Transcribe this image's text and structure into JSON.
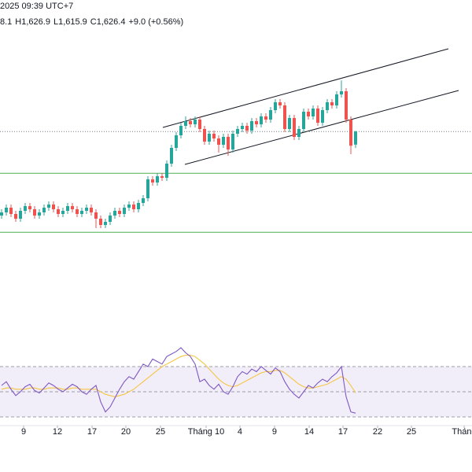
{
  "chart_data": {
    "type": "candlestick",
    "header": "2025 09:39 UTC+7",
    "ohlc_text": [
      "8.1",
      "H",
      "1,626.9",
      "L",
      "1,615.9",
      "C",
      "1,626.4",
      "+9.0 (+0.56%)"
    ],
    "open": [
      1573,
      1575,
      1578,
      1574,
      1571,
      1576,
      1579,
      1577,
      1573,
      1575,
      1578,
      1580,
      1577,
      1574,
      1576,
      1579,
      1577,
      1574,
      1576,
      1578,
      1575,
      1571,
      1567,
      1569,
      1573,
      1576,
      1574,
      1578,
      1580,
      1577,
      1581,
      1584,
      1596,
      1594,
      1598,
      1597,
      1606,
      1616,
      1624,
      1630,
      1633,
      1631,
      1634,
      1628,
      1620,
      1625,
      1622,
      1618,
      1623,
      1615,
      1625,
      1628,
      1630,
      1627,
      1633,
      1631,
      1636,
      1634,
      1640,
      1645,
      1643,
      1628,
      1635,
      1623,
      1628,
      1639,
      1636,
      1641,
      1632,
      1640,
      1645,
      1643,
      1650,
      1652,
      1634,
      1618.1
    ],
    "high": [
      1577,
      1580,
      1580,
      1576,
      1578,
      1581,
      1581,
      1579,
      1577,
      1580,
      1582,
      1582,
      1579,
      1578,
      1581,
      1581,
      1579,
      1578,
      1580,
      1580,
      1577,
      1573,
      1571,
      1575,
      1578,
      1578,
      1580,
      1582,
      1582,
      1583,
      1586,
      1598,
      1598,
      1600,
      1600,
      1608,
      1618,
      1626,
      1632,
      1636,
      1635,
      1636,
      1636,
      1630,
      1627,
      1627,
      1624,
      1625,
      1625,
      1627,
      1630,
      1632,
      1632,
      1635,
      1635,
      1638,
      1638,
      1642,
      1647,
      1647,
      1645,
      1637,
      1637,
      1630,
      1641,
      1641,
      1643,
      1643,
      1642,
      1647,
      1647,
      1652,
      1658.9,
      1654,
      1636,
      1626.9
    ],
    "low": [
      1571,
      1573,
      1572,
      1569,
      1569,
      1574,
      1575,
      1571,
      1571,
      1573,
      1576,
      1575,
      1572,
      1572,
      1574,
      1575,
      1572,
      1572,
      1574,
      1573,
      1565,
      1565,
      1565,
      1567,
      1571,
      1572,
      1572,
      1576,
      1575,
      1575,
      1579,
      1582,
      1592,
      1592,
      1595,
      1595,
      1604,
      1614,
      1622,
      1628,
      1629,
      1629,
      1626,
      1618,
      1618,
      1620,
      1613,
      1616,
      1611,
      1613,
      1623,
      1626,
      1625,
      1625,
      1629,
      1629,
      1632,
      1632,
      1638,
      1641,
      1626,
      1626,
      1621,
      1621,
      1626,
      1634,
      1634,
      1630,
      1630,
      1638,
      1641,
      1641,
      1648,
      1632,
      1612,
      1615.9
    ],
    "close": [
      1575,
      1578,
      1574,
      1571,
      1576,
      1579,
      1577,
      1573,
      1575,
      1578,
      1580,
      1577,
      1574,
      1576,
      1579,
      1577,
      1574,
      1576,
      1578,
      1575,
      1571,
      1567,
      1569,
      1573,
      1576,
      1574,
      1578,
      1580,
      1577,
      1581,
      1584,
      1596,
      1594,
      1598,
      1597,
      1606,
      1616,
      1624,
      1630,
      1633,
      1631,
      1634,
      1628,
      1620,
      1625,
      1622,
      1618,
      1623,
      1615,
      1625,
      1628,
      1630,
      1627,
      1633,
      1631,
      1636,
      1634,
      1640,
      1645,
      1643,
      1628,
      1635,
      1623,
      1628,
      1639,
      1636,
      1641,
      1632,
      1640,
      1645,
      1643,
      1650,
      1652,
      1634,
      1617.4,
      1626.4
    ],
    "up_color": "#26a69a",
    "down_color": "#ef5350",
    "ylim": [
      1482,
      1710
    ],
    "xlim": [
      -0.3333,
      99.6667
    ],
    "levels": [
      1599.9,
      1562.4
    ],
    "level_color": "#4caf50",
    "xticks": [
      {
        "value": 4.67,
        "label": "9"
      },
      {
        "value": 11.83,
        "label": "12"
      },
      {
        "value": 19.17,
        "label": "17"
      },
      {
        "value": 26.33,
        "label": "20"
      },
      {
        "value": 33.67,
        "label": "25"
      },
      {
        "value": 43.33,
        "label": "Tháng 10"
      },
      {
        "value": 50.5,
        "label": "4"
      },
      {
        "value": 57.83,
        "label": "9"
      },
      {
        "value": 65.17,
        "label": "14"
      },
      {
        "value": 72.33,
        "label": "17"
      },
      {
        "value": 79.67,
        "label": "22"
      },
      {
        "value": 86.83,
        "label": "25"
      },
      {
        "value": 98,
        "label": "Tháng"
      }
    ],
    "rsi": {
      "color": "#7e57c2",
      "ma_color": "#f5c542",
      "ylim": [
        23.75,
        86.25
      ],
      "levels": [
        70,
        50,
        30
      ],
      "values": [
        55,
        58,
        52,
        47,
        50,
        54,
        56,
        51,
        49,
        53,
        57,
        55,
        52,
        50,
        53,
        56,
        54,
        50,
        48,
        52,
        55,
        42,
        34,
        38,
        45,
        52,
        58,
        62,
        60,
        66,
        72,
        70,
        76,
        74,
        72,
        78,
        80,
        82,
        85,
        81,
        78,
        72,
        58,
        60,
        55,
        52,
        56,
        50,
        48,
        54,
        62,
        66,
        64,
        68,
        66,
        70,
        67,
        64,
        69,
        66,
        58,
        52,
        48,
        45,
        50,
        55,
        53,
        57,
        60,
        58,
        62,
        65,
        70,
        46,
        34,
        33
      ],
      "ma": [
        52,
        53,
        53,
        52,
        52,
        52,
        53,
        53,
        52,
        52,
        53,
        53,
        53,
        52,
        52,
        53,
        53,
        52,
        52,
        52,
        52,
        50,
        48,
        47,
        46,
        47,
        48,
        50,
        52,
        55,
        58,
        61,
        64,
        67,
        70,
        72,
        74,
        76,
        78,
        79,
        79,
        78,
        75,
        72,
        68,
        64,
        60,
        57,
        55,
        54,
        55,
        57,
        59,
        61,
        63,
        65,
        66,
        66,
        67,
        67,
        65,
        62,
        59,
        56,
        54,
        53,
        53,
        54,
        55,
        56,
        58,
        60,
        62,
        60,
        55,
        49
      ]
    }
  }
}
